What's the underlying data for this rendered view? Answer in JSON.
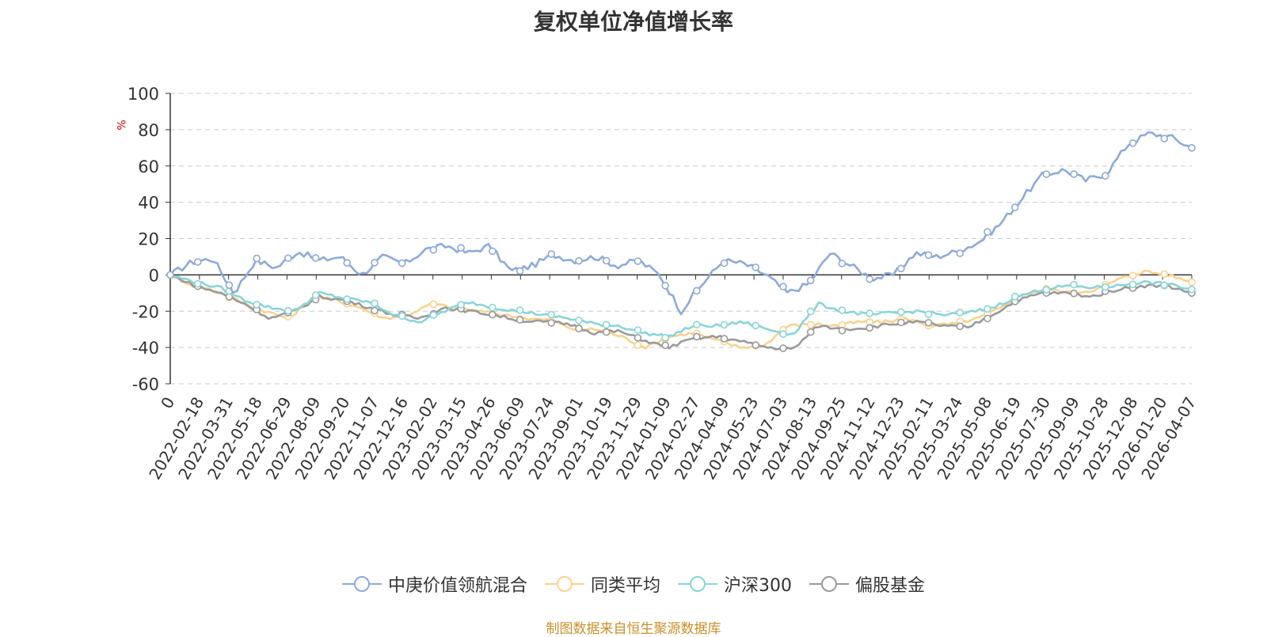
{
  "chart_data": {
    "type": "line",
    "title": "复权单位净值增长率",
    "ylabel": "%",
    "xlabel": "",
    "ylim": [
      -60,
      100
    ],
    "yticks": [
      100,
      80,
      60,
      40,
      20,
      0,
      -20,
      -40,
      -60
    ],
    "xticks": [
      "0",
      "2022-02-18",
      "2022-03-31",
      "2022-05-18",
      "2022-06-29",
      "2022-08-09",
      "2022-09-20",
      "2022-11-07",
      "2022-12-16",
      "2023-02-02",
      "2023-03-15",
      "2023-04-26",
      "2023-06-09",
      "2023-07-24",
      "2023-09-01",
      "2023-10-19",
      "2023-11-29",
      "2024-01-09",
      "2024-02-27",
      "2024-04-09",
      "2024-05-23",
      "2024-07-03",
      "2024-08-13",
      "2024-09-25",
      "2024-11-12",
      "2024-12-23",
      "2025-02-11",
      "2025-03-24",
      "2025-05-08",
      "2025-06-19",
      "2025-07-30",
      "2025-09-09",
      "2025-10-28",
      "2025-12-08",
      "2026-01-20",
      "2026-04-07"
    ],
    "grid": true,
    "legend_position": "bottom-center",
    "series": [
      {
        "name": "中庚价值领航混合",
        "color": "#8eaad8",
        "values": [
          0,
          7,
          9,
          -10,
          8,
          4,
          13,
          8,
          10,
          0,
          10,
          6,
          14,
          16,
          12,
          16,
          2,
          5,
          11,
          8,
          10,
          5,
          8,
          0,
          -20,
          -5,
          8,
          6,
          0,
          -10,
          -5,
          12,
          5,
          -2,
          0,
          12,
          10,
          13,
          18,
          28,
          42,
          55,
          58,
          52,
          56,
          72,
          78,
          76,
          70
        ]
      },
      {
        "name": "同类平均",
        "color": "#f8d390",
        "values": [
          0,
          -6,
          -9,
          -15,
          -20,
          -24,
          -12,
          -14,
          -18,
          -24,
          -22,
          -16,
          -18,
          -20,
          -22,
          -24,
          -25,
          -30,
          -30,
          -34,
          -40,
          -34,
          -32,
          -36,
          -40,
          -39,
          -28,
          -27,
          -28,
          -26,
          -26,
          -24,
          -28,
          -27,
          -24,
          -18,
          -10,
          -8,
          -10,
          -8,
          -2,
          2,
          0,
          -4
        ]
      },
      {
        "name": "沪深300",
        "color": "#8ad4d8",
        "values": [
          0,
          -4,
          -7,
          -14,
          -18,
          -20,
          -10,
          -13,
          -15,
          -22,
          -26,
          -20,
          -15,
          -18,
          -20,
          -22,
          -24,
          -27,
          -28,
          -32,
          -34,
          -28,
          -28,
          -26,
          -30,
          -33,
          -16,
          -20,
          -22,
          -21,
          -20,
          -22,
          -21,
          -18,
          -12,
          -8,
          -6,
          -7,
          -6,
          -4,
          -5,
          -8
        ]
      },
      {
        "name": "偏股基金",
        "color": "#9a9a9a",
        "values": [
          0,
          -6,
          -10,
          -16,
          -24,
          -20,
          -12,
          -14,
          -18,
          -22,
          -24,
          -18,
          -20,
          -22,
          -25,
          -26,
          -27,
          -32,
          -31,
          -36,
          -40,
          -35,
          -34,
          -37,
          -40,
          -41,
          -28,
          -30,
          -29,
          -27,
          -26,
          -28,
          -29,
          -22,
          -14,
          -10,
          -10,
          -12,
          -8,
          -6,
          -6,
          -10
        ]
      }
    ]
  },
  "legend": {
    "items": [
      "中庚价值领航混合",
      "同类平均",
      "沪深300",
      "偏股基金"
    ]
  },
  "source_note": "制图数据来自恒生聚源数据库"
}
